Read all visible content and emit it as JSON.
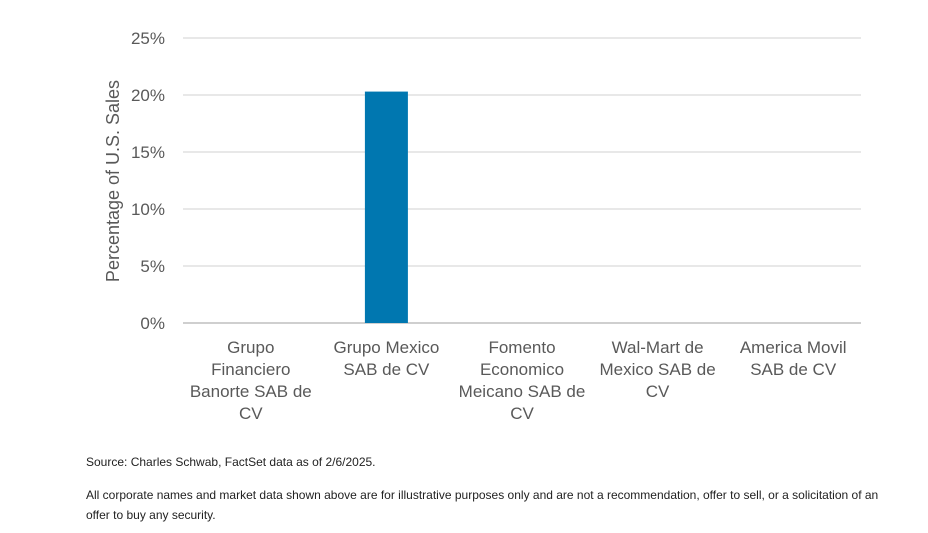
{
  "chart_data": {
    "type": "bar",
    "categories": [
      [
        "Grupo",
        "Financiero",
        "Banorte SAB de",
        "CV"
      ],
      [
        "Grupo Mexico",
        "SAB de CV"
      ],
      [
        "Fomento",
        "Economico",
        "Meicano SAB de",
        "CV"
      ],
      [
        "Wal-Mart de",
        "Mexico SAB de",
        "CV"
      ],
      [
        "America Movil",
        "SAB de CV"
      ]
    ],
    "values": [
      0,
      20.3,
      0,
      0,
      0
    ],
    "ylabel": "Percentage of U.S. Sales",
    "ylim": [
      0,
      25
    ],
    "yticks": [
      0,
      5,
      10,
      15,
      20,
      25
    ],
    "ytick_labels": [
      "0%",
      "5%",
      "10%",
      "15%",
      "20%",
      "25%"
    ],
    "grid": true,
    "bar_color": "#0077b0",
    "grid_color": "#d9d9d9",
    "axis_color": "#bfbfbf"
  },
  "footer": {
    "source": "Source: Charles Schwab, FactSet data as of 2/6/2025.",
    "disclaimer": "All corporate names and market data shown above are for illustrative purposes only and are not a recommendation, offer to sell, or a solicitation of an offer to buy any security."
  }
}
